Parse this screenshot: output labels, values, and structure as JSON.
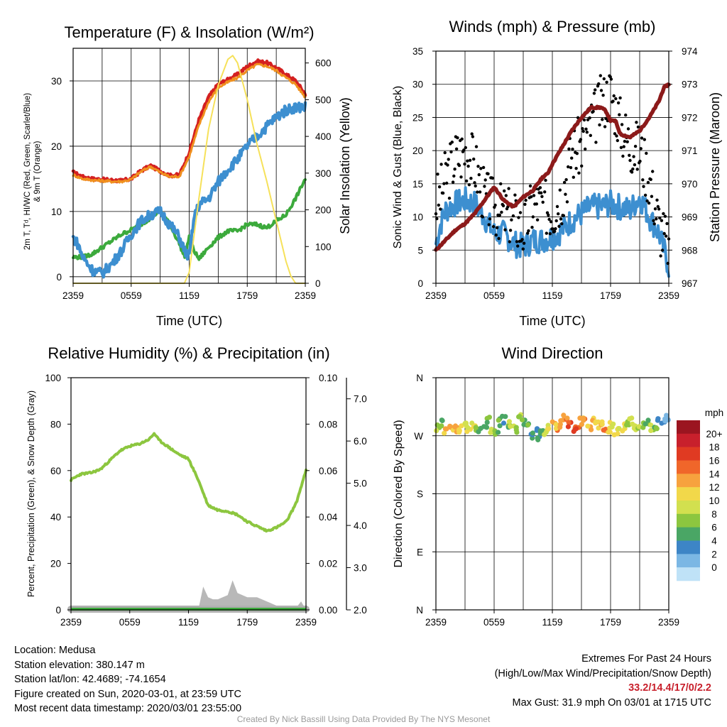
{
  "titles": {
    "p1": "Temperature (F) & Insolation (W/m²)",
    "p2": "Winds (mph) & Pressure (mb)",
    "p3": "Relative Humidity (%) & Precipitation (in)",
    "p4": "Wind Direction"
  },
  "time_ticks": [
    "2359",
    "0559",
    "1159",
    "1759",
    "2359"
  ],
  "colors": {
    "red": "#d42020",
    "orange": "#f0901e",
    "green": "#3caa3c",
    "blue": "#3d8fd0",
    "yellow": "#f6e15a",
    "maroon": "#8c1a1a",
    "black": "#000000",
    "rh_green": "#8cc63f",
    "gray": "#b8b8b8"
  },
  "chart_data": [
    {
      "id": "temperature",
      "type": "line",
      "title": "Temperature (F) & Insolation (W/m²)",
      "xlabel": "Time (UTC)",
      "ylabel": "2m T, Tᵈ, HI/WC (Red, Green, Scarlet/Blue) & 9m T (Orange)",
      "ylabel_right": "Solar Insolation (Yellow)",
      "x_hours": [
        0,
        24
      ],
      "ylim": [
        -1,
        35
      ],
      "yticks": [
        0,
        10,
        20,
        30
      ],
      "ylim_right": [
        0,
        640
      ],
      "yticks_right": [
        0,
        100,
        200,
        300,
        400,
        500,
        600
      ],
      "series": [
        {
          "color": "red",
          "x": [
            0,
            1,
            2,
            3,
            4,
            5,
            6,
            7,
            8,
            9,
            10,
            11,
            12,
            13,
            14,
            15,
            16,
            17,
            18,
            19,
            20,
            21,
            22,
            23,
            24
          ],
          "y": [
            16,
            15.3,
            15,
            14.9,
            14.8,
            14.7,
            15,
            16.2,
            17,
            16.2,
            15.5,
            15.6,
            19,
            24,
            27.5,
            29.5,
            30.2,
            31,
            32.2,
            33,
            32.8,
            32,
            31,
            30,
            28
          ]
        },
        {
          "color": "orange",
          "x": [
            0,
            1,
            2,
            3,
            4,
            5,
            6,
            7,
            8,
            9,
            10,
            11,
            12,
            13,
            14,
            15,
            16,
            17,
            18,
            19,
            20,
            21,
            22,
            23,
            24
          ],
          "y": [
            15.6,
            15,
            14.8,
            14.7,
            14.6,
            14.6,
            14.9,
            16.1,
            16.9,
            16,
            15.3,
            15.4,
            18.4,
            23.2,
            26.8,
            29,
            29.8,
            30.5,
            31.6,
            32.5,
            32.3,
            31.6,
            30.5,
            29.5,
            27.5
          ]
        },
        {
          "color": "green",
          "x": [
            0,
            1,
            2,
            3,
            4,
            5,
            6,
            7,
            8,
            9,
            10,
            11,
            11.5,
            12,
            12.5,
            13,
            14,
            15,
            16,
            17,
            18,
            19,
            20,
            21,
            22,
            23,
            24
          ],
          "y": [
            3,
            3,
            3.5,
            4.5,
            5.5,
            6.5,
            7.2,
            8,
            9,
            10.2,
            8,
            5,
            3,
            6,
            4,
            2.7,
            4.5,
            6,
            7,
            7,
            8,
            8,
            7.5,
            8.5,
            9.5,
            12,
            15
          ]
        },
        {
          "color": "blue",
          "x": [
            0,
            0.5,
            1,
            2,
            3,
            4,
            5,
            6,
            7,
            8,
            9,
            10,
            11,
            11.5,
            12,
            12.5,
            13,
            14,
            15,
            16,
            17,
            18,
            19,
            20,
            21,
            22,
            23,
            24
          ],
          "y": [
            6,
            5,
            3,
            1,
            0.5,
            2,
            4,
            6.5,
            8.5,
            9.5,
            10,
            8,
            6,
            4,
            3,
            9,
            11,
            12,
            14.5,
            16.5,
            18,
            20,
            21.5,
            23,
            24.5,
            25.5,
            26,
            26
          ]
        },
        {
          "color": "yellow",
          "axis": "right",
          "x": [
            0,
            11.5,
            12,
            13,
            14,
            15,
            16,
            16.5,
            17,
            18,
            19,
            20,
            21,
            22,
            22.5,
            23,
            23.3,
            24
          ],
          "y": [
            0,
            0,
            30,
            230,
            420,
            540,
            610,
            620,
            600,
            500,
            380,
            280,
            170,
            60,
            20,
            0,
            0,
            0
          ]
        }
      ]
    },
    {
      "id": "winds",
      "type": "scatter",
      "title": "Winds (mph) & Pressure (mb)",
      "xlabel": "Time (UTC)",
      "ylabel": "Sonic Wind & Gust (Blue, Black)",
      "ylabel_right": "Station Pressure (Maroon)",
      "x_hours": [
        0,
        24
      ],
      "ylim": [
        0,
        35
      ],
      "yticks": [
        0,
        5,
        10,
        15,
        20,
        25,
        30,
        35
      ],
      "ylim_right": [
        967,
        974
      ],
      "yticks_right": [
        967,
        968,
        969,
        970,
        971,
        972,
        973,
        974
      ],
      "series": [
        {
          "color": "blue",
          "kind": "line",
          "x": [
            0,
            0.5,
            1,
            2,
            3,
            4,
            5,
            6,
            7,
            8,
            9,
            10,
            11,
            12,
            13,
            14,
            15,
            16,
            17,
            18,
            19,
            20,
            21,
            22,
            23,
            24
          ],
          "y": [
            6,
            9,
            11,
            12,
            12.5,
            12,
            10,
            7.5,
            7.5,
            6,
            5.5,
            6.5,
            6.5,
            7,
            8,
            9.5,
            10.5,
            11.5,
            11.5,
            12,
            11.5,
            11,
            13,
            10,
            7.5,
            2.5
          ]
        },
        {
          "color": "black",
          "kind": "points",
          "x": [
            0,
            0.5,
            1,
            2,
            3,
            4,
            5,
            6,
            7,
            8,
            9,
            10,
            11,
            12,
            13,
            14,
            15,
            16,
            17,
            18,
            19,
            20,
            21,
            22,
            23,
            24
          ],
          "y": [
            12,
            13.5,
            16,
            19,
            20,
            18,
            13,
            11.5,
            10.5,
            10,
            8,
            12,
            12,
            11,
            13.5,
            19.5,
            21,
            24,
            27,
            29,
            24,
            21,
            20,
            16,
            9,
            5
          ]
        },
        {
          "color": "maroon",
          "kind": "line",
          "axis": "right",
          "x": [
            0,
            1,
            2,
            3,
            4,
            5,
            6,
            7,
            8,
            9,
            10,
            11,
            11.5,
            12,
            13,
            14,
            15,
            16,
            17,
            17.5,
            18,
            18.5,
            19,
            20,
            21,
            22,
            23,
            23.5,
            24
          ],
          "y": [
            968,
            968.3,
            968.6,
            968.8,
            969.1,
            969.5,
            969.9,
            969.5,
            969.3,
            969.6,
            969.8,
            970.2,
            970.3,
            970.6,
            971.1,
            971.6,
            972,
            972.3,
            972.3,
            972.2,
            971.9,
            971.9,
            971.5,
            971.4,
            971.6,
            972,
            972.5,
            972.9,
            973
          ]
        }
      ]
    },
    {
      "id": "humidity",
      "type": "line",
      "title": "Relative Humidity (%) & Precipitation (in)",
      "ylabel": "Percent, Precipitation (Green), & Snow Depth (Gray)",
      "x_hours": [
        0,
        24
      ],
      "ylim": [
        0,
        100
      ],
      "yticks": [
        0,
        20,
        40,
        60,
        80,
        100
      ],
      "ylim_right": [
        0,
        0.1
      ],
      "yticks_right": [
        "0.00",
        "0.02",
        "0.04",
        "0.06",
        "0.08",
        "0.10"
      ],
      "ylim_snow": [
        2,
        7.5
      ],
      "yticks_snow": [
        "2.0",
        "3.0",
        "4.0",
        "5.0",
        "6.0",
        "7.0"
      ],
      "series": [
        {
          "color": "rh_green",
          "x": [
            0,
            1,
            2,
            3,
            4,
            5,
            6,
            7,
            8,
            8.5,
            9,
            10,
            11,
            12,
            13,
            14,
            15,
            16,
            17,
            18,
            19,
            20,
            21,
            22,
            23,
            24
          ],
          "y": [
            56,
            58.5,
            59,
            60.5,
            64.5,
            68.5,
            70.5,
            71.5,
            73.5,
            76,
            73,
            70,
            67,
            65,
            56,
            45,
            43,
            42.5,
            41,
            38,
            36,
            34,
            35.5,
            38,
            46,
            60
          ]
        },
        {
          "color": "gray",
          "kind": "area",
          "axis": "snow",
          "x": [
            0,
            1,
            2,
            3,
            4,
            5,
            6,
            7,
            8,
            9,
            10,
            11,
            12,
            13,
            13.5,
            14,
            14.5,
            15,
            16,
            16.5,
            17,
            17.5,
            18,
            19,
            20,
            21,
            22,
            23,
            23.5,
            24
          ],
          "y": [
            2,
            2,
            2,
            2,
            2,
            2,
            2,
            2,
            2,
            2,
            2,
            2,
            2,
            2,
            2.55,
            2.3,
            2.25,
            2.25,
            2.35,
            2.7,
            2.4,
            2.35,
            2.3,
            2.3,
            2.2,
            2.1,
            2.05,
            2.05,
            2.2,
            2
          ]
        },
        {
          "color": "green",
          "kind": "line",
          "axis": "right",
          "x": [
            0,
            24
          ],
          "y": [
            0,
            0
          ]
        }
      ]
    },
    {
      "id": "direction",
      "type": "scatter",
      "title": "Wind Direction",
      "ylabel": "Direction (Colored By Speed)",
      "x_hours": [
        0,
        24
      ],
      "yticks": [
        "N",
        "E",
        "S",
        "W",
        "N"
      ],
      "ytick_degrees": [
        0,
        90,
        180,
        270,
        360
      ],
      "legend_title": "mph",
      "legend_labels": [
        "20+",
        "18",
        "16",
        "14",
        "12",
        "10",
        "8",
        "6",
        "4",
        "2",
        "0"
      ],
      "legend_colors": [
        "#9b1520",
        "#c8202c",
        "#e03a22",
        "#f0662a",
        "#f7a23e",
        "#f2d84a",
        "#d2e04f",
        "#8cc63f",
        "#4aa665",
        "#3d85c6",
        "#7bb7e4",
        "#bfe2f7"
      ],
      "x": [
        0.2,
        0.6,
        1,
        1.4,
        1.8,
        2.2,
        2.6,
        3,
        3.4,
        3.8,
        4.2,
        4.6,
        5,
        5.4,
        5.8,
        6.2,
        6.6,
        7,
        7.4,
        7.8,
        8.2,
        8.6,
        9,
        9.4,
        9.8,
        10.2,
        10.6,
        11,
        11.4,
        11.8,
        12.2,
        12.6,
        13,
        13.4,
        13.8,
        14.2,
        14.6,
        15,
        15.4,
        15.8,
        16.2,
        16.6,
        17,
        17.4,
        17.8,
        18.2,
        18.6,
        19,
        19.4,
        19.8,
        20.2,
        20.6,
        21,
        21.4,
        21.8,
        22.2,
        22.6,
        23,
        23.4,
        23.8
      ],
      "direction": [
        282,
        290,
        276,
        280,
        283,
        278,
        280,
        286,
        281,
        289,
        284,
        279,
        286,
        294,
        279,
        273,
        291,
        295,
        282,
        287,
        279,
        299,
        292,
        285,
        271,
        276,
        269,
        272,
        273,
        281,
        287,
        284,
        289,
        296,
        285,
        279,
        278,
        292,
        291,
        284,
        294,
        286,
        291,
        282,
        279,
        289,
        276,
        277,
        283,
        286,
        294,
        285,
        286,
        284,
        289,
        282,
        282,
        292,
        289,
        296
      ],
      "speed": [
        7,
        6,
        12,
        12,
        13,
        13,
        11,
        9,
        10,
        11,
        7,
        6,
        5,
        6,
        8,
        6,
        5,
        4,
        6,
        9,
        7,
        7,
        6,
        5,
        3,
        4,
        4,
        5,
        9,
        10,
        12,
        13,
        14,
        14,
        16,
        17,
        16,
        13,
        15,
        12,
        12,
        10,
        12,
        14,
        12,
        11,
        10,
        10,
        10,
        8,
        9,
        9,
        8,
        7,
        6,
        8,
        7,
        4,
        3,
        2
      ]
    }
  ],
  "footer": {
    "location": "Location: Medusa",
    "elevation": "Station elevation: 380.147 m",
    "latlon": "Station lat/lon: 42.4689; -74.1654",
    "created": "Figure created on Sun, 2020-03-01, at 23:59 UTC",
    "timestamp": "Most recent data timestamp: 2020/03/01 23:55:00",
    "extremes_title": "Extremes For Past 24 Hours",
    "extremes_subtitle": "(High/Low/Max Wind/Precipitation/Snow Depth)",
    "extremes_values": "33.2/14.4/17/0/2.2",
    "max_gust": "Max Gust: 31.9 mph On 03/01 at 1715 UTC",
    "credit": "Created By Nick Bassill Using Data Provided By The NYS Mesonet"
  }
}
